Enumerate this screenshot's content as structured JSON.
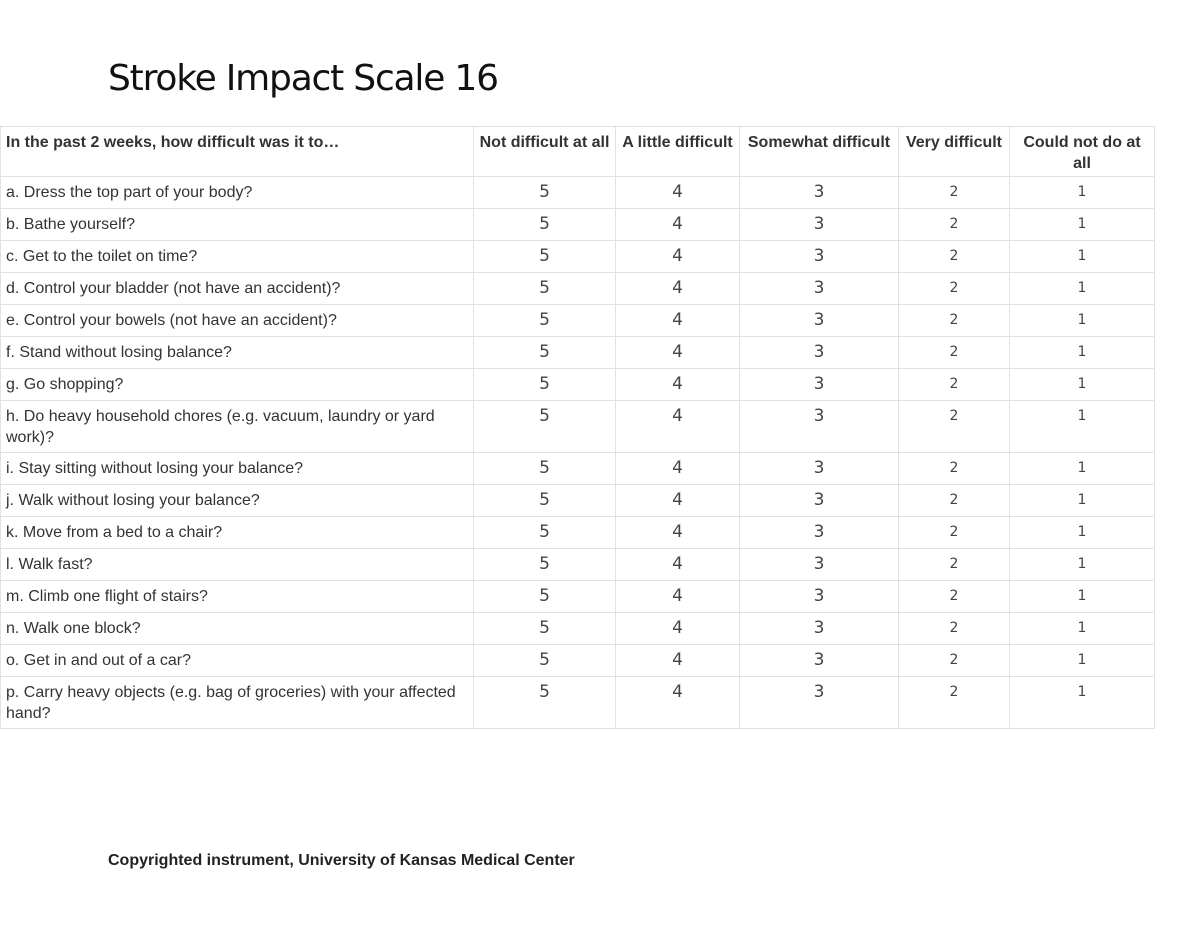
{
  "title": "Stroke Impact Scale 16",
  "table": {
    "headers": [
      "In the past 2 weeks, how difficult was it to…",
      "Not difficult at all",
      "A little difficult",
      "Somewhat difficult",
      "Very difficult",
      "Could not do at all"
    ],
    "rows": [
      {
        "question": "a. Dress the top part of your body?",
        "values": [
          "5",
          "4",
          "3",
          "2",
          "1"
        ]
      },
      {
        "question": "b. Bathe yourself?",
        "values": [
          "5",
          "4",
          "3",
          "2",
          "1"
        ]
      },
      {
        "question": "c. Get to the toilet on time?",
        "values": [
          "5",
          "4",
          "3",
          "2",
          "1"
        ]
      },
      {
        "question": "d. Control your bladder (not have an accident)?",
        "values": [
          "5",
          "4",
          "3",
          "2",
          "1"
        ]
      },
      {
        "question": "e. Control your bowels (not have an accident)?",
        "values": [
          "5",
          "4",
          "3",
          "2",
          "1"
        ]
      },
      {
        "question": "f. Stand without losing balance?",
        "values": [
          "5",
          "4",
          "3",
          "2",
          "1"
        ]
      },
      {
        "question": "g. Go shopping?",
        "values": [
          "5",
          "4",
          "3",
          "2",
          "1"
        ]
      },
      {
        "question": "h. Do heavy household chores (e.g. vacuum, laundry or yard work)?",
        "values": [
          "5",
          "4",
          "3",
          "2",
          "1"
        ]
      },
      {
        "question": "i. Stay sitting without losing your balance?",
        "values": [
          "5",
          "4",
          "3",
          "2",
          "1"
        ]
      },
      {
        "question": "j. Walk without losing your balance?",
        "values": [
          "5",
          "4",
          "3",
          "2",
          "1"
        ]
      },
      {
        "question": "k. Move from a bed to a chair?",
        "values": [
          "5",
          "4",
          "3",
          "2",
          "1"
        ]
      },
      {
        "question": "l. Walk fast?",
        "values": [
          "5",
          "4",
          "3",
          "2",
          "1"
        ]
      },
      {
        "question": "m. Climb one flight of stairs?",
        "values": [
          "5",
          "4",
          "3",
          "2",
          "1"
        ]
      },
      {
        "question": "n. Walk one block?",
        "values": [
          "5",
          "4",
          "3",
          "2",
          "1"
        ]
      },
      {
        "question": "o. Get in and out of a car?",
        "values": [
          "5",
          "4",
          "3",
          "2",
          "1"
        ]
      },
      {
        "question": "p. Carry heavy objects (e.g. bag of groceries) with your affected hand?",
        "values": [
          "5",
          "4",
          "3",
          "2",
          "1"
        ]
      }
    ]
  },
  "footer": "Copyrighted instrument, University of Kansas Medical Center"
}
